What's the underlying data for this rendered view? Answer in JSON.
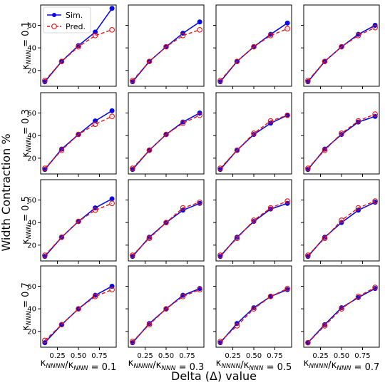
{
  "figure": {
    "ylabel": "Width Contraction %",
    "xlabel": "Delta (Δ) value",
    "legend": {
      "sim": "Sim.",
      "pred": "Pred.",
      "placement": "top-left of first panel"
    },
    "colors": {
      "sim": "#0a0ae6",
      "pred": "#ee1111"
    }
  },
  "chart_data": {
    "type": "line",
    "grid": false,
    "x": [
      0.1,
      0.3,
      0.5,
      0.7,
      0.9
    ],
    "xticks": [
      "0.25",
      "0.50",
      "0.75"
    ],
    "xtick_values": [
      0.25,
      0.5,
      0.75
    ],
    "xlim": [
      0.05,
      0.95
    ],
    "yticks": [
      "20",
      "40",
      "60"
    ],
    "ytick_values": [
      20,
      40,
      60
    ],
    "ylim": [
      6,
      78
    ],
    "col_labels": [
      {
        "pre": "κ",
        "sub1": "NNNN",
        "mid": "/κ",
        "sub2": "NNN",
        "val": " = 0.1"
      },
      {
        "pre": "κ",
        "sub1": "NNNN",
        "mid": "/κ",
        "sub2": "NNN",
        "val": " = 0.3"
      },
      {
        "pre": "κ",
        "sub1": "NNNN",
        "mid": "/κ",
        "sub2": "NNN",
        "val": " = 0.5"
      },
      {
        "pre": "κ",
        "sub1": "NNNN",
        "mid": "/κ",
        "sub2": "NNN",
        "val": " = 0.7"
      }
    ],
    "row_labels": [
      {
        "pre": "κ",
        "sub": "NNN",
        "val": " = 0.1"
      },
      {
        "pre": "κ",
        "sub": "NNN",
        "val": " = 0.3"
      },
      {
        "pre": "κ",
        "sub": "NNN",
        "val": " = 0.5"
      },
      {
        "pre": "κ",
        "sub": "NNN",
        "val": " = 0.7"
      }
    ],
    "panels": [
      [
        {
          "sim": [
            10,
            28,
            42,
            54,
            75
          ],
          "pred": [
            11,
            28,
            41,
            51,
            56
          ]
        },
        {
          "sim": [
            10,
            28,
            41,
            53,
            63
          ],
          "pred": [
            11,
            28,
            41,
            51,
            56
          ]
        },
        {
          "sim": [
            10,
            28,
            41,
            52,
            62
          ],
          "pred": [
            11,
            28,
            41,
            51,
            57
          ]
        },
        {
          "sim": [
            10,
            28,
            41,
            52,
            60
          ],
          "pred": [
            11,
            28,
            41,
            51,
            58
          ]
        }
      ],
      [
        {
          "sim": [
            10,
            28,
            41,
            53,
            62
          ],
          "pred": [
            11,
            27,
            41,
            50,
            57
          ]
        },
        {
          "sim": [
            10,
            27,
            41,
            52,
            60
          ],
          "pred": [
            11,
            27,
            41,
            51,
            58
          ]
        },
        {
          "sim": [
            10,
            27,
            41,
            51,
            58
          ],
          "pred": [
            11,
            27,
            42,
            53,
            58
          ]
        },
        {
          "sim": [
            10,
            28,
            41,
            52,
            57
          ],
          "pred": [
            11,
            27,
            42,
            53,
            59
          ]
        }
      ],
      [
        {
          "sim": [
            10,
            27,
            41,
            53,
            61
          ],
          "pred": [
            11,
            27,
            41,
            51,
            57
          ]
        },
        {
          "sim": [
            10,
            27,
            40,
            51,
            57
          ],
          "pred": [
            11,
            26,
            40,
            53,
            58
          ]
        },
        {
          "sim": [
            10,
            27,
            41,
            52,
            57
          ],
          "pred": [
            11,
            26,
            42,
            53,
            59
          ]
        },
        {
          "sim": [
            10,
            27,
            40,
            51,
            58
          ],
          "pred": [
            11,
            26,
            42,
            53,
            59
          ]
        }
      ],
      [
        {
          "sim": [
            10,
            26,
            40,
            52,
            60
          ],
          "pred": [
            12,
            26,
            40,
            51,
            57
          ]
        },
        {
          "sim": [
            10,
            27,
            40,
            52,
            58
          ],
          "pred": [
            11,
            26,
            40,
            51,
            57
          ]
        },
        {
          "sim": [
            10,
            27,
            41,
            51,
            57
          ],
          "pred": [
            11,
            25,
            40,
            51,
            58
          ]
        },
        {
          "sim": [
            10,
            26,
            41,
            50,
            58
          ],
          "pred": [
            10,
            25,
            40,
            51,
            59
          ]
        }
      ]
    ]
  }
}
